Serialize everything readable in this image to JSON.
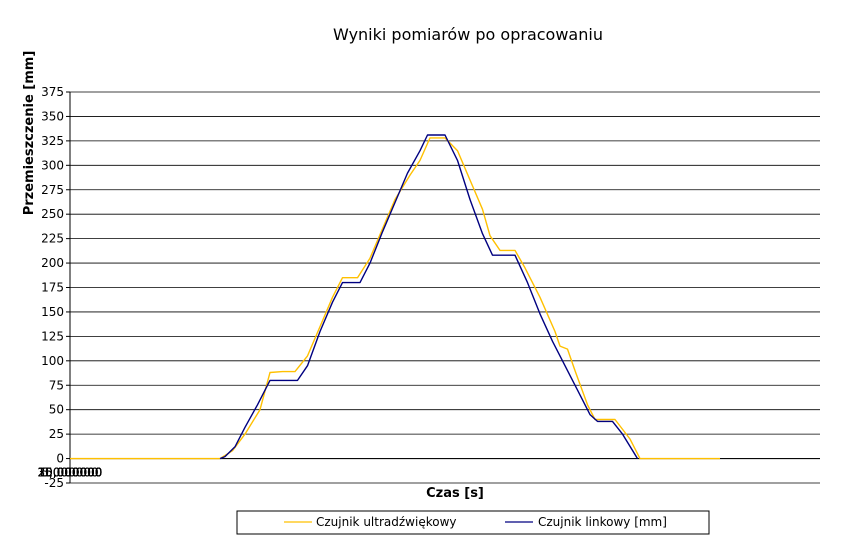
{
  "chart_data": {
    "type": "line",
    "title": "Wyniki pomiarów po opracowaniu",
    "xlabel": "Czas [s]",
    "ylabel": "Przemieszczenie [mm]",
    "xlim": [
      0,
      30000000
    ],
    "ylim": [
      -25,
      375
    ],
    "x_ticks": [
      "0,000000",
      "5,000000",
      "10,000000",
      "15,000000",
      "20,000000",
      "25,000000",
      "30,000000"
    ],
    "y_ticks": [
      "-25",
      "0",
      "25",
      "50",
      "75",
      "100",
      "125",
      "150",
      "175",
      "200",
      "225",
      "250",
      "275",
      "300",
      "325",
      "350",
      "375"
    ],
    "grid": "horizontal",
    "legend_position": "bottom",
    "series": [
      {
        "name": "Czujnik ultradźwiękowy",
        "color": "#FFC000",
        "x": [
          0,
          3000000,
          6000000,
          6500000,
          7000000,
          7600000,
          8000000,
          8500000,
          9000000,
          9500000,
          10000000,
          10500000,
          10900000,
          11500000,
          12000000,
          12500000,
          13000000,
          13600000,
          14000000,
          14400000,
          15000000,
          15500000,
          16000000,
          16500000,
          16800000,
          17200000,
          17800000,
          18200000,
          18800000,
          19400000,
          19600000,
          19900000,
          20200000,
          20700000,
          21000000,
          21800000,
          22400000,
          22800000,
          25000000,
          26000000
        ],
        "values": [
          0,
          0,
          0,
          8,
          25,
          50,
          88,
          89,
          89,
          105,
          135,
          165,
          185,
          185,
          205,
          235,
          265,
          290,
          305,
          328,
          328,
          315,
          285,
          255,
          228,
          213,
          213,
          195,
          165,
          130,
          115,
          112,
          90,
          55,
          40,
          40,
          20,
          0,
          0,
          0
        ]
      },
      {
        "name": "Czujnik linkowy [mm]",
        "color": "#000080",
        "x": [
          6000000,
          6200000,
          6600000,
          7000000,
          7500000,
          8000000,
          8500000,
          9100000,
          9500000,
          10000000,
          10500000,
          10900000,
          11600000,
          12000000,
          12500000,
          13000000,
          13500000,
          14000000,
          14300000,
          15000000,
          15500000,
          16000000,
          16500000,
          16900000,
          17800000,
          18300000,
          18800000,
          19300000,
          19800000,
          20300000,
          20800000,
          21100000,
          21700000,
          22100000,
          22700000
        ],
        "values": [
          0,
          2,
          12,
          32,
          55,
          80,
          80,
          80,
          95,
          130,
          160,
          180,
          180,
          200,
          232,
          262,
          292,
          315,
          331,
          331,
          305,
          265,
          230,
          208,
          208,
          180,
          148,
          120,
          95,
          70,
          45,
          38,
          38,
          25,
          0
        ]
      }
    ]
  }
}
